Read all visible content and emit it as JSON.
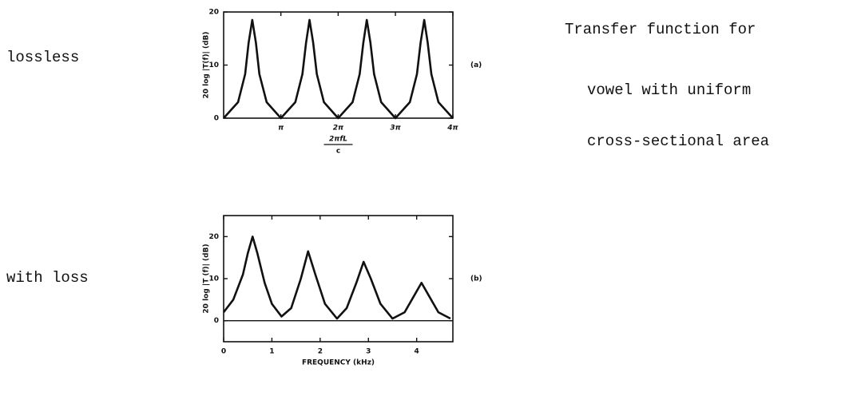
{
  "side_labels": [
    "lossless",
    "with loss"
  ],
  "caption": [
    "Transfer function for",
    "vowel with uniform",
    "cross-sectional area"
  ],
  "chart_data": [
    {
      "type": "line",
      "panel": "(a)",
      "y_label": "20 log |T(f)| (dB)",
      "x_label_num": "2πfL",
      "x_label_den": "c",
      "x": [
        0,
        0.79,
        1.18,
        1.37,
        1.57,
        1.77,
        1.96,
        2.36,
        3.14,
        3.93,
        4.32,
        4.52,
        4.71,
        4.91,
        5.11,
        5.5,
        6.28,
        7.07,
        7.46,
        7.66,
        7.85,
        8.05,
        8.25,
        8.64,
        9.42,
        10.21,
        10.6,
        10.8,
        11.0,
        11.19,
        11.39,
        11.78,
        12.57
      ],
      "series": [
        {
          "color": "#111111",
          "values": [
            0,
            3.0,
            8.3,
            14.2,
            18.5,
            14.2,
            8.3,
            3.0,
            0,
            3.0,
            8.3,
            14.2,
            18.5,
            14.2,
            8.3,
            3.0,
            0,
            3.0,
            8.3,
            14.2,
            18.5,
            14.2,
            8.3,
            3.0,
            0,
            3.0,
            8.3,
            14.2,
            18.5,
            14.2,
            8.3,
            3.0,
            0
          ]
        }
      ],
      "xlim": [
        0,
        12.57
      ],
      "ylim": [
        0,
        20
      ],
      "xticks": [
        {
          "value": 3.14,
          "label": "π"
        },
        {
          "value": 6.28,
          "label": "2π"
        },
        {
          "value": 9.42,
          "label": "3π"
        },
        {
          "value": 12.57,
          "label": "4π"
        }
      ],
      "yticks": [
        0,
        10,
        20
      ]
    },
    {
      "type": "line",
      "panel": "(b)",
      "y_label": "20 log |T (f)| (dB)",
      "x_label": "FREQUENCY (kHz)",
      "x": [
        0,
        0.2,
        0.4,
        0.5,
        0.6,
        0.7,
        0.85,
        1.0,
        1.2,
        1.4,
        1.6,
        1.75,
        1.9,
        2.1,
        2.35,
        2.55,
        2.75,
        2.9,
        3.05,
        3.25,
        3.5,
        3.75,
        3.95,
        4.1,
        4.25,
        4.45,
        4.7
      ],
      "series": [
        {
          "color": "#111111",
          "values": [
            2,
            5,
            11,
            16,
            20,
            16,
            9,
            4,
            1,
            3,
            10,
            16.5,
            11,
            4,
            0.5,
            3,
            9,
            14,
            10,
            4,
            0.5,
            2,
            6,
            9,
            6,
            2,
            0.5
          ]
        }
      ],
      "xlim": [
        0,
        4.75
      ],
      "ylim": [
        -5,
        25
      ],
      "xticks": [
        0,
        1,
        2,
        3,
        4
      ],
      "yticks": [
        0,
        10,
        20
      ],
      "zero_line": true
    }
  ]
}
